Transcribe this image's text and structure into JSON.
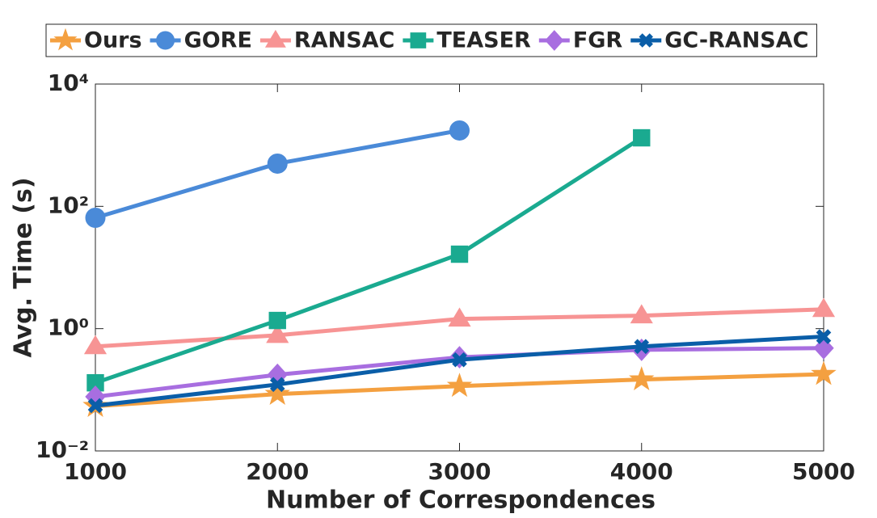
{
  "chart_data": {
    "type": "line",
    "x_label": "Number of Correspondences",
    "y_label": "Avg. Time (s)",
    "x": [
      1000,
      2000,
      3000,
      4000,
      5000
    ],
    "xlim": [
      1000,
      5000
    ],
    "xticks": [
      1000,
      2000,
      3000,
      4000,
      5000
    ],
    "ylim": [
      0.01,
      10000
    ],
    "yticks": [
      {
        "value": 0.01,
        "label": "10⁻²"
      },
      {
        "value": 1,
        "label": "10⁰"
      },
      {
        "value": 100,
        "label": "10²"
      },
      {
        "value": 10000,
        "label": "10⁴"
      }
    ],
    "y_scale": "log",
    "legend": "top",
    "series": [
      {
        "name": "Ours",
        "color": "#f4a040",
        "marker": "star",
        "values": [
          0.054,
          0.085,
          0.115,
          0.147,
          0.18
        ]
      },
      {
        "name": "GORE",
        "color": "#4a8ad8",
        "marker": "circle",
        "values": [
          65,
          500,
          1740,
          null,
          null
        ]
      },
      {
        "name": "RANSAC",
        "color": "#f79494",
        "marker": "triangle",
        "values": [
          0.51,
          0.78,
          1.44,
          1.63,
          2.07
        ]
      },
      {
        "name": "TEASER",
        "color": "#1aaa90",
        "marker": "square",
        "values": [
          0.13,
          1.36,
          16.5,
          1320,
          null
        ]
      },
      {
        "name": "FGR",
        "color": "#a86ee0",
        "marker": "diamond",
        "values": [
          0.077,
          0.176,
          0.34,
          0.45,
          0.48
        ]
      },
      {
        "name": "GC-RANSAC",
        "color": "#0a5ea8",
        "marker": "x",
        "values": [
          0.055,
          0.122,
          0.31,
          0.51,
          0.74
        ]
      }
    ]
  }
}
